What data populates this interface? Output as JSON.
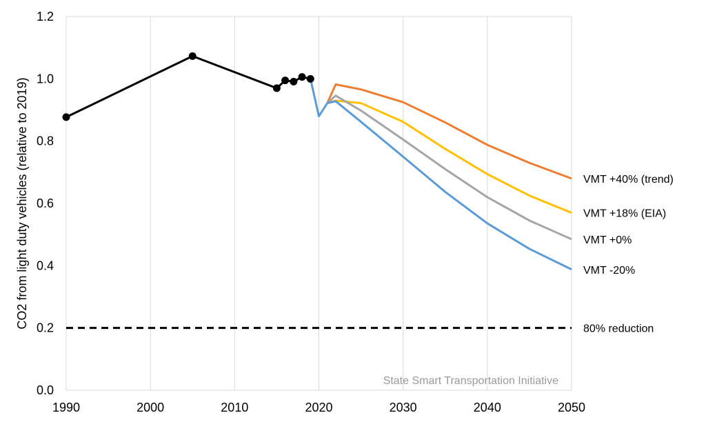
{
  "chart_data": {
    "type": "line",
    "ylabel": "CO2 from light duty vehicles (relative to 2019)",
    "xlim": [
      1990,
      2050
    ],
    "ylim": [
      0,
      1.2
    ],
    "x_ticks": [
      "1990",
      "2000",
      "2010",
      "2020",
      "2030",
      "2040",
      "2050"
    ],
    "y_ticks": [
      "0.0",
      "0.2",
      "0.4",
      "0.6",
      "0.8",
      "1.0",
      "1.2"
    ],
    "grid": "vertical",
    "watermark": "State Smart Transportation Initiative",
    "historical": {
      "color": "#000000",
      "points": [
        [
          1990,
          0.877
        ],
        [
          2005,
          1.073
        ],
        [
          2015,
          0.97
        ],
        [
          2016,
          0.995
        ],
        [
          2017,
          0.991
        ],
        [
          2018,
          1.006
        ],
        [
          2019,
          1.0
        ]
      ]
    },
    "covid_drop": {
      "color": "#5b9bd5",
      "points": [
        [
          2019,
          1.0
        ],
        [
          2020,
          0.88
        ],
        [
          2021,
          0.922
        ]
      ]
    },
    "series": [
      {
        "name": "VMT +40% (trend)",
        "color": "#ed7d31",
        "points": [
          [
            2021,
            0.922
          ],
          [
            2022,
            0.982
          ],
          [
            2025,
            0.966
          ],
          [
            2030,
            0.925
          ],
          [
            2035,
            0.86
          ],
          [
            2040,
            0.788
          ],
          [
            2045,
            0.73
          ],
          [
            2050,
            0.68
          ]
        ]
      },
      {
        "name": "VMT +18% (EIA)",
        "color": "#ffc000",
        "points": [
          [
            2021,
            0.922
          ],
          [
            2022,
            0.93
          ],
          [
            2025,
            0.922
          ],
          [
            2030,
            0.862
          ],
          [
            2035,
            0.775
          ],
          [
            2040,
            0.694
          ],
          [
            2045,
            0.625
          ],
          [
            2050,
            0.57
          ]
        ]
      },
      {
        "name": "VMT +0%",
        "color": "#a5a5a5",
        "points": [
          [
            2021,
            0.922
          ],
          [
            2022,
            0.946
          ],
          [
            2025,
            0.898
          ],
          [
            2030,
            0.805
          ],
          [
            2035,
            0.71
          ],
          [
            2040,
            0.62
          ],
          [
            2045,
            0.545
          ],
          [
            2050,
            0.485
          ]
        ]
      },
      {
        "name": "VMT -20%",
        "color": "#5b9bd5",
        "points": [
          [
            2021,
            0.922
          ],
          [
            2022,
            0.928
          ],
          [
            2025,
            0.862
          ],
          [
            2030,
            0.75
          ],
          [
            2035,
            0.637
          ],
          [
            2040,
            0.536
          ],
          [
            2045,
            0.454
          ],
          [
            2050,
            0.388
          ]
        ]
      }
    ],
    "target": {
      "name": "80% reduction",
      "value": 0.2,
      "color": "#000000",
      "style": "dashed"
    }
  }
}
